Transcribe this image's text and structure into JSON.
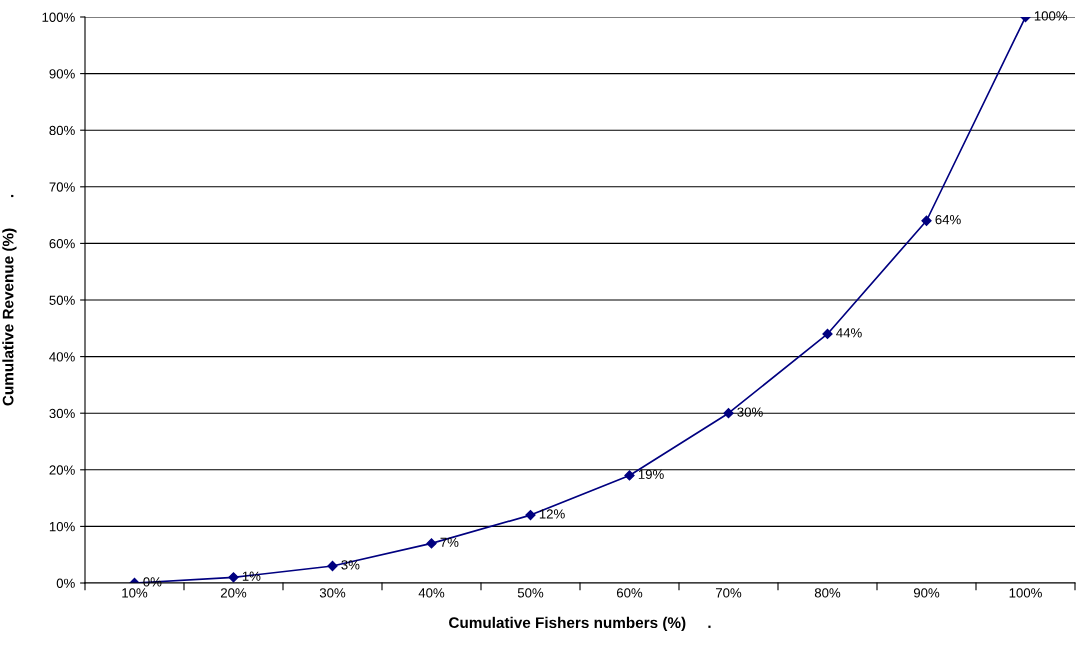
{
  "chart_data": {
    "type": "line",
    "xlabel": "Cumulative Fishers numbers (%)     .",
    "ylabel": "Cumulative Revenue (%)       .",
    "categories": [
      "10%",
      "20%",
      "30%",
      "40%",
      "50%",
      "60%",
      "70%",
      "80%",
      "90%",
      "100%"
    ],
    "series": [
      {
        "color": "#000080",
        "values": [
          0,
          1,
          3,
          7,
          12,
          19,
          30,
          44,
          64,
          100
        ],
        "value_labels": [
          "0%",
          "1%",
          "3%",
          "7%",
          "12%",
          "19%",
          "30%",
          "44%",
          "64%",
          "100%"
        ]
      }
    ],
    "ylim": [
      0,
      100
    ],
    "yticks": [
      {
        "value": 0,
        "label": "0%"
      },
      {
        "value": 10,
        "label": "10%"
      },
      {
        "value": 20,
        "label": "20%"
      },
      {
        "value": 30,
        "label": "30%"
      },
      {
        "value": 40,
        "label": "40%"
      },
      {
        "value": 50,
        "label": "50%"
      },
      {
        "value": 60,
        "label": "60%"
      },
      {
        "value": 70,
        "label": "70%"
      },
      {
        "value": 80,
        "label": "80%"
      },
      {
        "value": 90,
        "label": "90%"
      },
      {
        "value": 100,
        "label": "100%"
      }
    ],
    "grid": "y",
    "legend": false,
    "marker": "diamond",
    "line_style": "solid"
  }
}
